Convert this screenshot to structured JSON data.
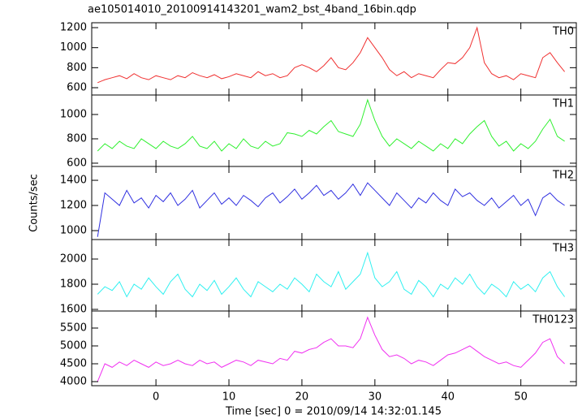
{
  "chart_data": {
    "type": "line",
    "title": "ae105014010_20100914143201_wam2_bst_4band_16bin.qdp",
    "xlabel": "Time [sec] 0 = 2010/09/14 14:32:01.145",
    "ylabel": "Counts/sec",
    "x": [
      -8,
      -7,
      -6,
      -5,
      -4,
      -3,
      -2,
      -1,
      0,
      1,
      2,
      3,
      4,
      5,
      6,
      7,
      8,
      9,
      10,
      11,
      12,
      13,
      14,
      15,
      16,
      17,
      18,
      19,
      20,
      21,
      22,
      23,
      24,
      25,
      26,
      27,
      28,
      29,
      30,
      31,
      32,
      33,
      34,
      35,
      36,
      37,
      38,
      39,
      40,
      41,
      42,
      43,
      44,
      45,
      46,
      47,
      48,
      49,
      50,
      51,
      52,
      53,
      54,
      55,
      56
    ],
    "xlim": [
      -8.8,
      57.6
    ],
    "xticks": [
      0,
      10,
      20,
      30,
      40,
      50
    ],
    "series": [
      {
        "name": "TH0",
        "color": "#f03030",
        "ylim": [
          527,
          1249
        ],
        "yticks": [
          600,
          800,
          1000,
          1200
        ],
        "values": [
          650,
          680,
          700,
          720,
          690,
          740,
          700,
          680,
          720,
          700,
          680,
          720,
          700,
          750,
          720,
          700,
          730,
          690,
          710,
          740,
          720,
          700,
          760,
          720,
          740,
          700,
          720,
          800,
          830,
          800,
          760,
          820,
          900,
          800,
          780,
          850,
          950,
          1100,
          1000,
          900,
          780,
          720,
          760,
          700,
          740,
          720,
          700,
          780,
          850,
          840,
          900,
          1000,
          1200,
          850,
          740,
          700,
          720,
          680,
          740,
          720,
          700,
          900,
          950,
          850,
          760
        ]
      },
      {
        "name": "TH1",
        "color": "#30f030",
        "ylim": [
          573,
          1160
        ],
        "yticks": [
          600,
          800,
          1000
        ],
        "values": [
          700,
          760,
          720,
          780,
          740,
          720,
          800,
          760,
          720,
          780,
          740,
          720,
          760,
          820,
          740,
          720,
          780,
          700,
          760,
          720,
          800,
          740,
          720,
          780,
          740,
          760,
          850,
          840,
          820,
          870,
          840,
          900,
          950,
          860,
          840,
          820,
          920,
          1120,
          950,
          820,
          740,
          800,
          760,
          720,
          780,
          740,
          700,
          760,
          720,
          800,
          760,
          840,
          900,
          950,
          820,
          740,
          780,
          700,
          760,
          720,
          780,
          880,
          960,
          820,
          780
        ]
      },
      {
        "name": "TH2",
        "color": "#3030e0",
        "ylim": [
          929,
          1510
        ],
        "yticks": [
          1000,
          1200,
          1400
        ],
        "values": [
          950,
          1300,
          1250,
          1200,
          1320,
          1220,
          1260,
          1180,
          1280,
          1230,
          1300,
          1200,
          1250,
          1320,
          1180,
          1240,
          1300,
          1210,
          1260,
          1200,
          1280,
          1240,
          1190,
          1260,
          1300,
          1220,
          1270,
          1330,
          1250,
          1300,
          1360,
          1280,
          1320,
          1250,
          1300,
          1370,
          1280,
          1380,
          1320,
          1260,
          1200,
          1300,
          1240,
          1180,
          1260,
          1220,
          1300,
          1240,
          1200,
          1330,
          1270,
          1300,
          1240,
          1200,
          1260,
          1180,
          1230,
          1280,
          1200,
          1250,
          1120,
          1260,
          1300,
          1240,
          1200
        ]
      },
      {
        "name": "TH3",
        "color": "#30f0f0",
        "ylim": [
          1587,
          2155
        ],
        "yticks": [
          1600,
          1800,
          2000
        ],
        "values": [
          1720,
          1780,
          1750,
          1820,
          1700,
          1800,
          1760,
          1850,
          1780,
          1720,
          1820,
          1880,
          1760,
          1700,
          1800,
          1750,
          1830,
          1720,
          1780,
          1850,
          1760,
          1700,
          1820,
          1780,
          1740,
          1800,
          1760,
          1850,
          1800,
          1740,
          1880,
          1820,
          1780,
          1900,
          1760,
          1820,
          1880,
          2050,
          1850,
          1780,
          1820,
          1900,
          1760,
          1720,
          1830,
          1780,
          1700,
          1800,
          1760,
          1850,
          1800,
          1880,
          1780,
          1720,
          1800,
          1760,
          1700,
          1820,
          1760,
          1800,
          1740,
          1850,
          1900,
          1780,
          1700
        ]
      },
      {
        "name": "TH0123",
        "color": "#f030f0",
        "ylim": [
          3886,
          5977
        ],
        "yticks": [
          4000,
          4500,
          5000,
          5500
        ],
        "values": [
          4000,
          4500,
          4400,
          4550,
          4450,
          4600,
          4500,
          4400,
          4550,
          4450,
          4500,
          4600,
          4500,
          4450,
          4600,
          4500,
          4550,
          4400,
          4500,
          4600,
          4550,
          4450,
          4600,
          4550,
          4500,
          4650,
          4600,
          4850,
          4800,
          4900,
          4950,
          5100,
          5200,
          5000,
          5000,
          4950,
          5200,
          5800,
          5300,
          4900,
          4700,
          4750,
          4650,
          4500,
          4600,
          4550,
          4450,
          4600,
          4750,
          4800,
          4900,
          5000,
          4850,
          4700,
          4600,
          4500,
          4550,
          4450,
          4400,
          4600,
          4800,
          5100,
          5200,
          4700,
          4500
        ]
      }
    ]
  }
}
